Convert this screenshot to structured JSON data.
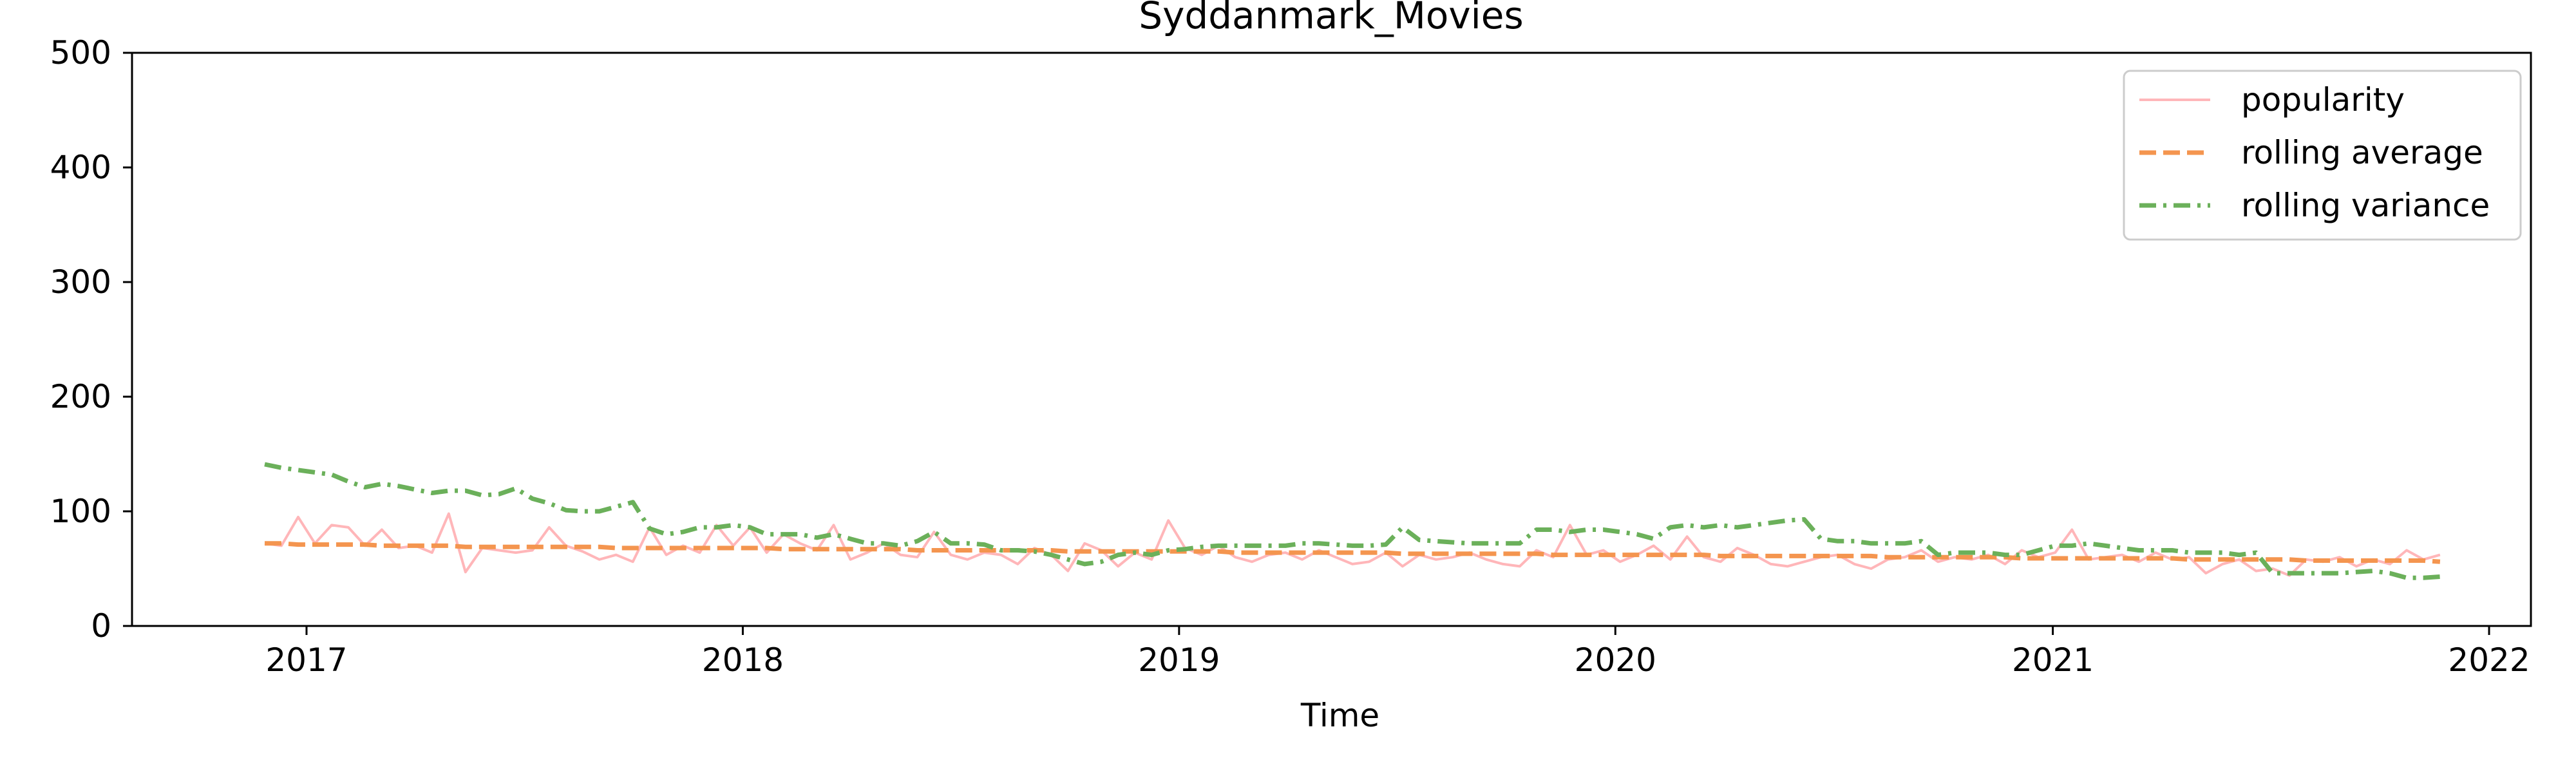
{
  "chart_data": {
    "type": "line",
    "title": "Syddanmark_Movies",
    "xlabel": "Time",
    "ylabel": "",
    "xlim": [
      "2016-08-08",
      "2022-02-05"
    ],
    "ylim": [
      0,
      500
    ],
    "x_ticks": [
      "2017",
      "2018",
      "2019",
      "2020",
      "2021",
      "2022"
    ],
    "y_ticks": [
      "0",
      "100",
      "200",
      "300",
      "400",
      "500"
    ],
    "grid": false,
    "legend": {
      "placement": "top-right",
      "entries": [
        "popularity",
        "rolling average",
        "rolling variance"
      ]
    },
    "x": [
      "2016-11-27",
      "2016-12-11",
      "2016-12-25",
      "2017-01-08",
      "2017-01-22",
      "2017-02-05",
      "2017-02-19",
      "2017-03-05",
      "2017-03-19",
      "2017-04-02",
      "2017-04-16",
      "2017-04-30",
      "2017-05-14",
      "2017-05-28",
      "2017-06-11",
      "2017-06-25",
      "2017-07-09",
      "2017-07-23",
      "2017-08-06",
      "2017-08-20",
      "2017-09-03",
      "2017-09-17",
      "2017-10-01",
      "2017-10-15",
      "2017-10-29",
      "2017-11-12",
      "2017-11-26",
      "2017-12-10",
      "2017-12-24",
      "2018-01-07",
      "2018-01-21",
      "2018-02-04",
      "2018-02-18",
      "2018-03-04",
      "2018-03-18",
      "2018-04-01",
      "2018-04-15",
      "2018-04-29",
      "2018-05-13",
      "2018-05-27",
      "2018-06-10",
      "2018-06-24",
      "2018-07-08",
      "2018-07-22",
      "2018-08-05",
      "2018-08-19",
      "2018-09-02",
      "2018-09-16",
      "2018-09-30",
      "2018-10-14",
      "2018-10-28",
      "2018-11-11",
      "2018-11-25",
      "2018-12-09",
      "2018-12-23",
      "2019-01-06",
      "2019-01-20",
      "2019-02-03",
      "2019-02-17",
      "2019-03-03",
      "2019-03-17",
      "2019-03-31",
      "2019-04-14",
      "2019-04-28",
      "2019-05-12",
      "2019-05-26",
      "2019-06-09",
      "2019-06-23",
      "2019-07-07",
      "2019-07-21",
      "2019-08-04",
      "2019-08-18",
      "2019-09-01",
      "2019-09-15",
      "2019-09-29",
      "2019-10-13",
      "2019-10-27",
      "2019-11-10",
      "2019-11-24",
      "2019-12-08",
      "2019-12-22",
      "2020-01-05",
      "2020-01-19",
      "2020-02-02",
      "2020-02-16",
      "2020-03-01",
      "2020-03-15",
      "2020-03-29",
      "2020-04-12",
      "2020-04-26",
      "2020-05-10",
      "2020-05-24",
      "2020-06-07",
      "2020-06-21",
      "2020-07-05",
      "2020-07-19",
      "2020-08-02",
      "2020-08-16",
      "2020-08-30",
      "2020-09-13",
      "2020-09-27",
      "2020-10-11",
      "2020-10-25",
      "2020-11-08",
      "2020-11-22",
      "2020-12-06",
      "2020-12-20",
      "2021-01-03",
      "2021-01-17",
      "2021-01-31",
      "2021-02-14",
      "2021-02-28",
      "2021-03-14",
      "2021-03-28",
      "2021-04-11",
      "2021-04-25",
      "2021-05-09",
      "2021-05-23",
      "2021-06-06",
      "2021-06-20",
      "2021-07-04",
      "2021-07-18",
      "2021-08-01",
      "2021-08-15",
      "2021-08-29",
      "2021-09-12",
      "2021-09-26",
      "2021-10-10",
      "2021-10-24",
      "2021-11-07",
      "2021-11-21"
    ],
    "series": [
      {
        "name": "popularity",
        "color": "#ffb6b9",
        "style": "solid",
        "values": [
          72,
          70,
          95,
          72,
          88,
          86,
          70,
          84,
          68,
          70,
          64,
          98,
          47,
          68,
          66,
          64,
          66,
          86,
          70,
          65,
          58,
          62,
          56,
          86,
          62,
          70,
          64,
          88,
          70,
          86,
          64,
          80,
          72,
          66,
          88,
          58,
          64,
          72,
          62,
          60,
          82,
          62,
          58,
          64,
          62,
          54,
          68,
          62,
          48,
          72,
          66,
          52,
          64,
          58,
          92,
          68,
          62,
          70,
          60,
          56,
          62,
          64,
          58,
          66,
          60,
          54,
          56,
          64,
          52,
          62,
          58,
          60,
          64,
          58,
          54,
          52,
          66,
          60,
          88,
          62,
          66,
          56,
          62,
          70,
          58,
          78,
          60,
          56,
          68,
          62,
          54,
          52,
          56,
          60,
          62,
          54,
          50,
          58,
          60,
          66,
          56,
          60,
          58,
          62,
          54,
          66,
          60,
          64,
          84,
          58,
          60,
          62,
          56,
          64,
          58,
          60,
          46,
          54,
          58,
          48,
          50,
          44,
          58,
          56,
          60,
          52,
          58,
          54,
          66,
          58,
          62
        ]
      },
      {
        "name": "rolling average",
        "color": "#f4954f",
        "style": "dashed",
        "values": [
          72,
          72,
          71,
          71,
          71,
          71,
          71,
          70,
          70,
          70,
          70,
          70,
          69,
          69,
          69,
          69,
          69,
          69,
          69,
          69,
          69,
          68,
          68,
          68,
          68,
          68,
          68,
          68,
          68,
          68,
          68,
          67,
          67,
          67,
          67,
          67,
          67,
          67,
          67,
          66,
          66,
          66,
          66,
          66,
          66,
          66,
          66,
          66,
          65,
          65,
          65,
          65,
          65,
          65,
          65,
          65,
          65,
          65,
          64,
          64,
          64,
          64,
          64,
          64,
          64,
          64,
          64,
          64,
          63,
          63,
          63,
          63,
          63,
          63,
          63,
          63,
          63,
          62,
          62,
          62,
          62,
          62,
          62,
          62,
          62,
          62,
          62,
          61,
          61,
          61,
          61,
          61,
          61,
          61,
          61,
          61,
          61,
          60,
          60,
          60,
          60,
          60,
          60,
          60,
          60,
          59,
          59,
          59,
          59,
          59,
          59,
          59,
          59,
          59,
          59,
          58,
          58,
          58,
          58,
          58,
          58,
          58,
          57,
          57,
          57,
          57,
          57,
          57,
          57,
          57,
          56
        ]
      },
      {
        "name": "rolling variance",
        "color": "#6bb05a",
        "style": "dashdot",
        "values": [
          141,
          138,
          136,
          134,
          132,
          126,
          121,
          124,
          122,
          119,
          116,
          118,
          118,
          114,
          115,
          120,
          111,
          107,
          101,
          100,
          100,
          104,
          108,
          85,
          80,
          82,
          86,
          86,
          88,
          86,
          80,
          80,
          80,
          77,
          80,
          76,
          72,
          72,
          70,
          74,
          82,
          72,
          72,
          71,
          66,
          66,
          65,
          62,
          58,
          54,
          56,
          62,
          64,
          62,
          66,
          67,
          69,
          70,
          70,
          70,
          70,
          70,
          72,
          72,
          71,
          70,
          70,
          71,
          86,
          75,
          74,
          73,
          72,
          72,
          72,
          72,
          84,
          84,
          82,
          84,
          84,
          82,
          80,
          76,
          86,
          88,
          86,
          88,
          86,
          88,
          90,
          92,
          93,
          76,
          74,
          74,
          72,
          72,
          72,
          74,
          62,
          64,
          64,
          64,
          62,
          62,
          66,
          70,
          70,
          72,
          70,
          68,
          66,
          66,
          66,
          64,
          64,
          64,
          62,
          64,
          46,
          46,
          46,
          46,
          46,
          47,
          48,
          46,
          42,
          42,
          43
        ]
      }
    ]
  }
}
